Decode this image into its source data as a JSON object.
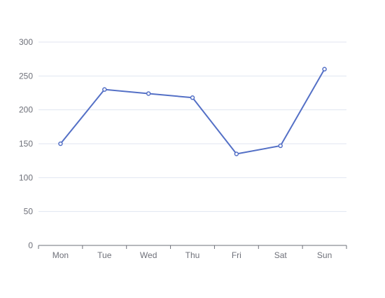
{
  "chart_data": {
    "type": "line",
    "title": "",
    "xlabel": "",
    "ylabel": "",
    "categories": [
      "Mon",
      "Tue",
      "Wed",
      "Thu",
      "Fri",
      "Sat",
      "Sun"
    ],
    "series": [
      {
        "values": [
          150,
          230,
          224,
          218,
          135,
          147,
          260
        ]
      }
    ],
    "ylim": [
      0,
      300
    ],
    "yticks": [
      0,
      50,
      100,
      150,
      200,
      250,
      300
    ],
    "grid": true,
    "legend": "none",
    "colors": {
      "line": "#5470c6",
      "grid": "#e0e6f1",
      "axis": "#6e7079",
      "label": "#6e7079"
    }
  }
}
